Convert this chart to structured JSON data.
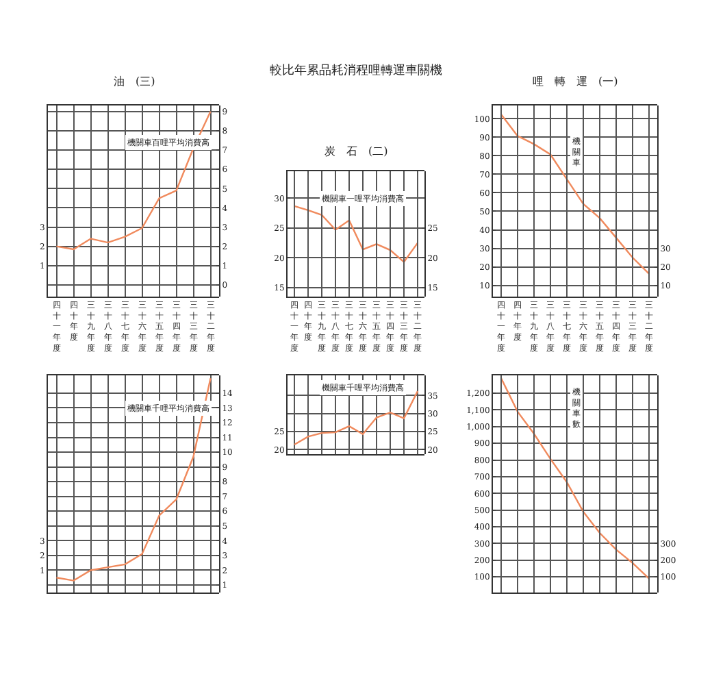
{
  "chart_data": [
    {
      "type": "line",
      "title": "油　(三)",
      "categories": [
        "四十一年度",
        "四十年度",
        "三十九年度",
        "三十八年度",
        "三十七年度",
        "三十六年度",
        "三十五年度",
        "三十四年度",
        "三十三年度",
        "三十二年度"
      ],
      "annotations": [
        "機關車百哩平均消費高"
      ],
      "ylim": [
        -0.6,
        9.3
      ],
      "yticks": [
        1,
        2,
        3
      ],
      "y2lim": [
        -0.6,
        9.3
      ],
      "y2ticks": [
        0,
        1,
        2,
        3,
        4,
        5,
        6,
        7,
        8,
        9
      ],
      "grid": true,
      "series": [
        {
          "color": "#f08a5d",
          "axis": "y2",
          "values": [
            2.0,
            1.85,
            2.4,
            2.2,
            2.5,
            2.95,
            4.5,
            4.9,
            7.1,
            9.0
          ]
        }
      ]
    },
    {
      "type": "line",
      "title": "較比年累品耗消程哩轉運車關機",
      "subtitle": "炭　石　(二)",
      "categories": [
        "四十一年度",
        "四十年度",
        "三十九年度",
        "三十八年度",
        "三十七年度",
        "三十六年度",
        "三十五年度",
        "三十四年度",
        "三十三年度",
        "三十二年度"
      ],
      "annotations": [
        "機關車一哩平均消費高"
      ],
      "ylim": [
        13.5,
        34.5
      ],
      "yticks": [
        15,
        20,
        25,
        30
      ],
      "y2lim": [
        13.5,
        34.5
      ],
      "y2ticks": [
        15,
        20,
        25
      ],
      "grid": true,
      "series": [
        {
          "color": "#f08a5d",
          "values": [
            28.7,
            28.0,
            27.2,
            24.7,
            26.3,
            21.4,
            22.3,
            21.3,
            19.3,
            22.5
          ]
        }
      ]
    },
    {
      "type": "line",
      "title": "哩　轉　運　(一)",
      "categories": [
        "四十一年度",
        "四十年度",
        "三十九年度",
        "三十八年度",
        "三十七年度",
        "三十六年度",
        "三十五年度",
        "三十四年度",
        "三十三年度",
        "三十二年度"
      ],
      "annotations": [
        "機關車"
      ],
      "ylim": [
        4,
        107
      ],
      "yticks": [
        10,
        20,
        30,
        40,
        50,
        60,
        70,
        80,
        90,
        100
      ],
      "y2lim": [
        4,
        107
      ],
      "y2ticks": [
        10,
        20,
        30
      ],
      "grid": true,
      "series": [
        {
          "color": "#f08a5d",
          "values": [
            102.3,
            90.7,
            86.3,
            80.7,
            67.3,
            54.0,
            46.3,
            35.7,
            25.0,
            16.3
          ]
        }
      ]
    },
    {
      "type": "line",
      "categories": [
        "四十一年度",
        "四十年度",
        "三十九年度",
        "三十八年度",
        "三十七年度",
        "三十六年度",
        "三十五年度",
        "三十四年度",
        "三十三年度",
        "三十二年度"
      ],
      "annotations": [
        "機關車千哩平均消費高"
      ],
      "tick_labels": "y",
      "ylim": [
        -0.5,
        14.2
      ],
      "yticks": [
        1,
        2,
        3
      ],
      "y2lim": [
        0.5,
        15.2
      ],
      "y2ticks": [
        1,
        2,
        3,
        4,
        5,
        6,
        7,
        8,
        9,
        10,
        11,
        12,
        13,
        14
      ],
      "grid": true,
      "series": [
        {
          "color": "#f08a5d",
          "axis": "y2",
          "values": [
            1.5,
            1.3,
            2.0,
            2.2,
            2.4,
            3.1,
            5.7,
            6.8,
            9.7,
            15.0
          ]
        }
      ]
    },
    {
      "type": "line",
      "categories": [
        "四十一年度",
        "四十年度",
        "三十九年度",
        "三十八年度",
        "三十七年度",
        "三十六年度",
        "三十五年度",
        "三十四年度",
        "三十三年度",
        "三十二年度"
      ],
      "annotations": [
        "機關車千哩平均消費高"
      ],
      "tick_labels": "y",
      "ylim": [
        18.7,
        40.6
      ],
      "yticks": [
        20,
        25
      ],
      "y2lim": [
        18.7,
        40.6
      ],
      "y2ticks": [
        20,
        25,
        30,
        35
      ],
      "grid": true,
      "series": [
        {
          "color": "#f08a5d",
          "axis": "y2",
          "values": [
            21.4,
            23.6,
            24.6,
            24.8,
            26.5,
            24.3,
            28.9,
            30.3,
            28.7,
            36.2
          ]
        }
      ]
    },
    {
      "type": "line",
      "categories": [
        "四十一年度",
        "四十年度",
        "三十九年度",
        "三十八年度",
        "三十七年度",
        "三十六年度",
        "三十五年度",
        "三十四年度",
        "三十三年度",
        "三十二年度"
      ],
      "annotations": [
        "機關車數"
      ],
      "tick_labels": "y",
      "ylim": [
        7,
        1307
      ],
      "yticks": [
        {
          "value": 100,
          "label": "100"
        },
        {
          "value": 200,
          "label": "200"
        },
        {
          "value": 300,
          "label": "300"
        },
        {
          "value": 400,
          "label": "400"
        },
        {
          "value": 500,
          "label": "500"
        },
        {
          "value": 600,
          "label": "600"
        },
        {
          "value": 700,
          "label": "700"
        },
        {
          "value": 800,
          "label": "800"
        },
        {
          "value": 900,
          "label": "900"
        },
        {
          "value": 1000,
          "label": "1,000"
        },
        {
          "value": 1100,
          "label": "1,100"
        },
        {
          "value": 1200,
          "label": "1,200"
        }
      ],
      "y2lim": [
        7,
        1307
      ],
      "y2ticks": [
        100,
        200,
        300
      ],
      "grid": true,
      "series": [
        {
          "color": "#f08a5d",
          "values": [
            1290,
            1090,
            957,
            807,
            667,
            490,
            363,
            263,
            183,
            90
          ]
        }
      ]
    }
  ]
}
